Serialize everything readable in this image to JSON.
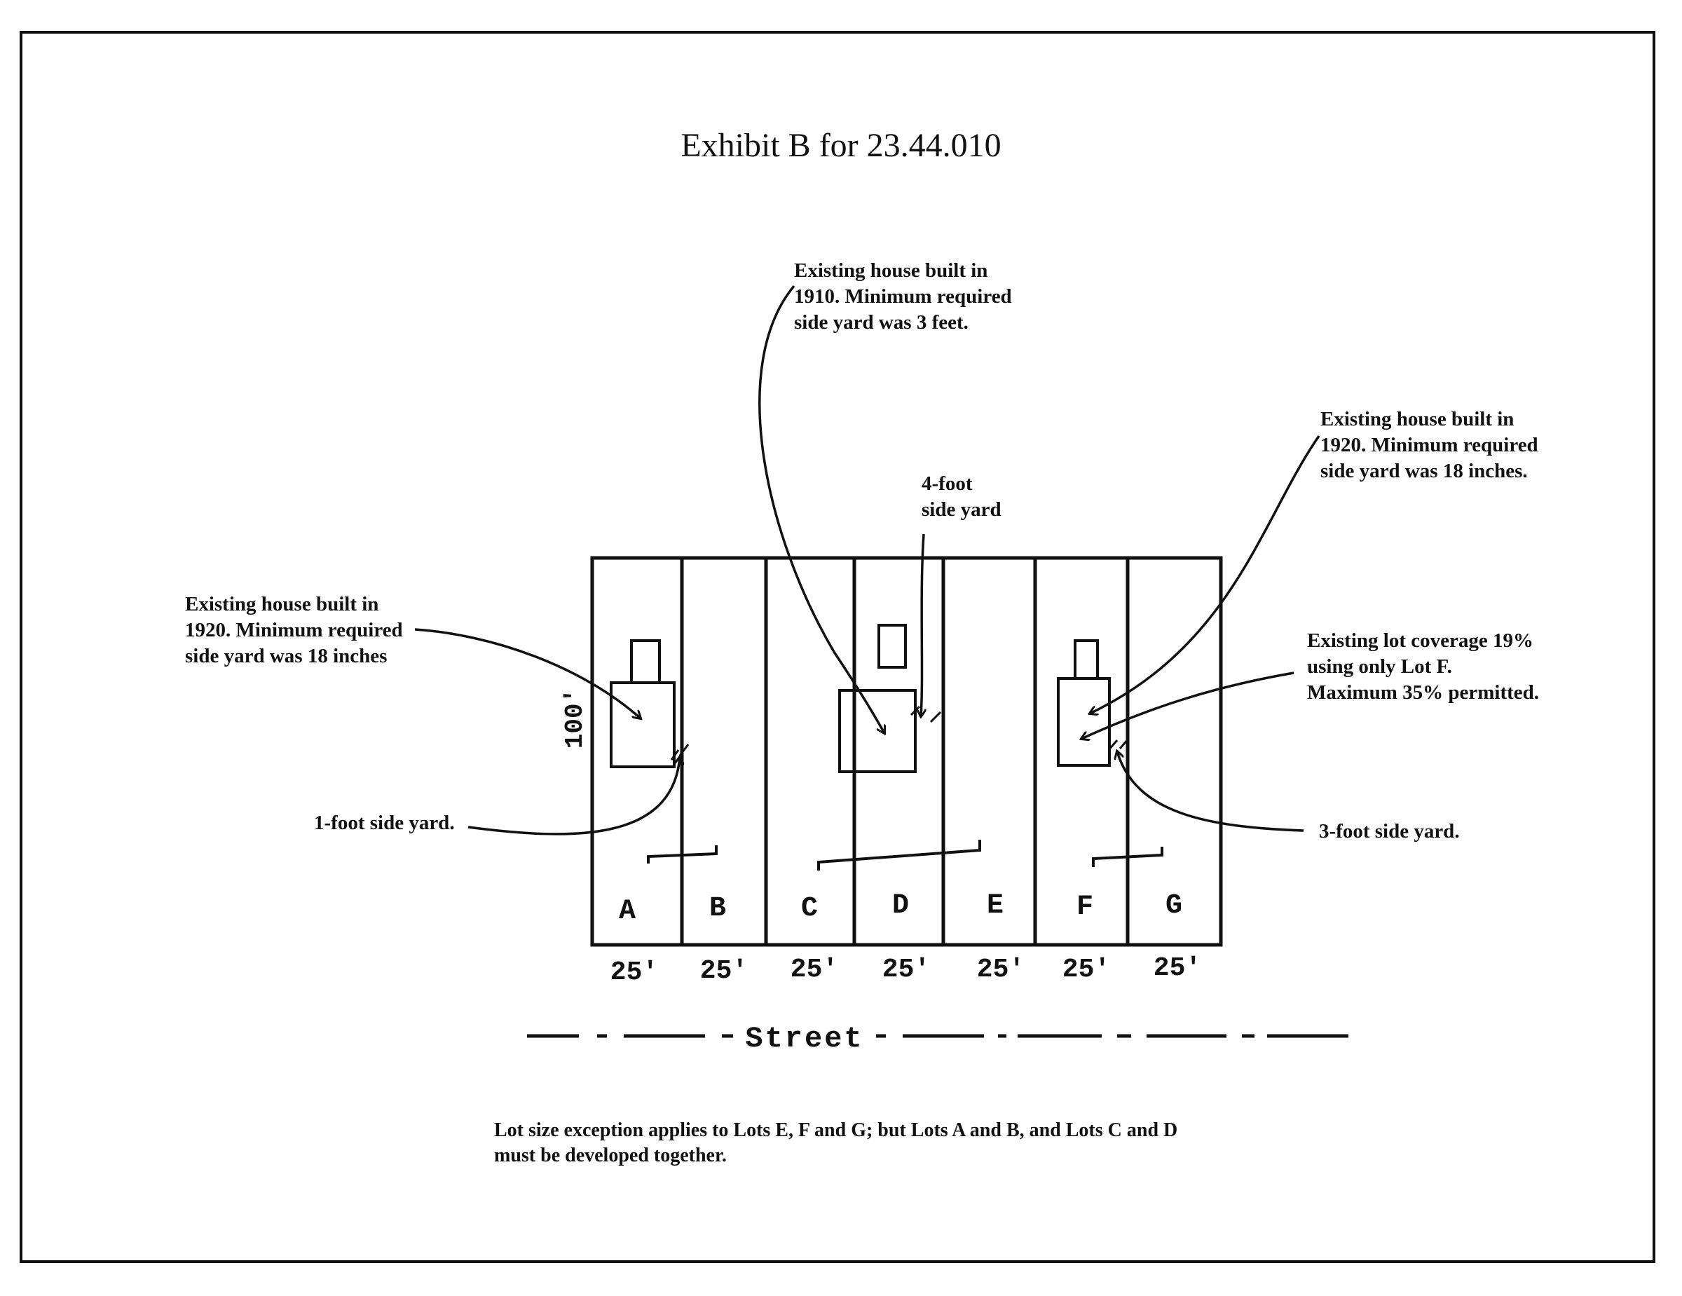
{
  "title": "Exhibit B for 23.44.010",
  "lots": [
    {
      "label": "A",
      "width": "25'"
    },
    {
      "label": "B",
      "width": "25'"
    },
    {
      "label": "C",
      "width": "25'"
    },
    {
      "label": "D",
      "width": "25'"
    },
    {
      "label": "E",
      "width": "25'"
    },
    {
      "label": "F",
      "width": "25'"
    },
    {
      "label": "G",
      "width": "25'"
    }
  ],
  "depth_label": "100'",
  "street_label": "Street",
  "notes": {
    "left_house": "Existing house built in\n1920. Minimum required\nside yard was 18 inches",
    "left_side_yard": "1-foot side yard.",
    "center_house": "Existing house built in\n1910. Minimum required\nside yard was 3 feet.",
    "center_side_yard": "4-foot\nside yard",
    "right_house": "Existing house built in\n1920. Minimum required\nside yard was 18 inches.",
    "right_coverage": "Existing lot coverage 19%\nusing only Lot F.\nMaximum 35% permitted.",
    "right_side_yard": "3-foot side yard.",
    "footer": "Lot size exception applies to Lots E, F and G; but Lots A and B, and Lots C and D\nmust be developed together."
  }
}
